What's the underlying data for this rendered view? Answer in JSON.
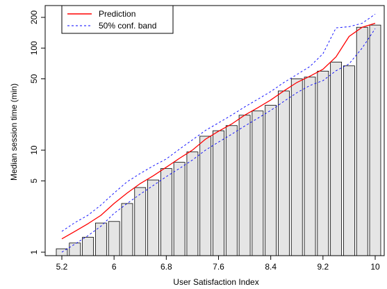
{
  "chart_data": {
    "type": "bar",
    "title": "",
    "xlabel": "User Satisfaction Index",
    "ylabel": "Median session time (min)",
    "y_scale": "log",
    "ylim": [
      1,
      200
    ],
    "xlim": [
      5.2,
      10
    ],
    "x_ticks": [
      "5.2",
      "6",
      "6.8",
      "7.6",
      "8.4",
      "9.2",
      "10"
    ],
    "x_tick_values": [
      5.2,
      6.0,
      6.8,
      7.6,
      8.4,
      9.2,
      10.0
    ],
    "y_ticks": [
      "1",
      "5",
      "10",
      "50",
      "100",
      "200"
    ],
    "y_tick_values": [
      1,
      5,
      10,
      50,
      100,
      200
    ],
    "grid": false,
    "legend_position": "top-left",
    "bar_fill": "#e5e5e5",
    "bar_stroke": "#000000",
    "bars": {
      "name": "",
      "x": [
        5.2,
        5.4,
        5.6,
        5.8,
        6.0,
        6.2,
        6.4,
        6.6,
        6.8,
        7.0,
        7.2,
        7.4,
        7.6,
        7.8,
        8.0,
        8.2,
        8.4,
        8.6,
        8.8,
        9.0,
        9.2,
        9.4,
        9.6,
        9.8,
        10.0
      ],
      "values": [
        1.08,
        1.23,
        1.4,
        1.93,
        2.0,
        3.0,
        4.3,
        5.1,
        6.6,
        7.6,
        9.6,
        13.7,
        15.5,
        17.4,
        22.0,
        24.2,
        27.5,
        38.0,
        50.0,
        52.0,
        59.5,
        73.0,
        67.0,
        160.0,
        168.0
      ]
    },
    "series": [
      {
        "name": "Prediction",
        "style": "solid",
        "color": "#ff0000",
        "x": [
          5.2,
          5.4,
          5.6,
          5.8,
          6.0,
          6.2,
          6.4,
          6.6,
          6.8,
          7.0,
          7.2,
          7.4,
          7.6,
          7.8,
          8.0,
          8.2,
          8.4,
          8.6,
          8.8,
          9.0,
          9.2,
          9.4,
          9.6,
          9.8,
          10.0
        ],
        "values": [
          1.35,
          1.6,
          1.9,
          2.3,
          3.0,
          3.8,
          4.7,
          5.6,
          6.8,
          8.3,
          10.0,
          12.8,
          15.3,
          18.0,
          22.0,
          26.0,
          31.0,
          38.0,
          46.0,
          53.0,
          62.0,
          82.0,
          130.0,
          160.0,
          175.0
        ]
      },
      {
        "name": "50% conf. band",
        "style": "dashed",
        "color": "#0000ff",
        "x": [
          5.2,
          5.4,
          5.6,
          5.8,
          6.0,
          6.2,
          6.4,
          6.6,
          6.8,
          7.0,
          7.2,
          7.4,
          7.6,
          7.8,
          8.0,
          8.2,
          8.4,
          8.6,
          8.8,
          9.0,
          9.2,
          9.4,
          9.6,
          9.8,
          10.0
        ],
        "values": [
          1.6,
          1.95,
          2.3,
          2.9,
          3.8,
          4.9,
          5.9,
          7.0,
          8.2,
          10.2,
          12.6,
          15.6,
          18.5,
          22.0,
          26.5,
          31.5,
          37.5,
          46.0,
          55.0,
          66.0,
          88.0,
          158.0,
          162.0,
          175.0,
          215.0
        ]
      },
      {
        "name": "50% conf. band",
        "style": "dashed",
        "color": "#0000ff",
        "x": [
          5.2,
          5.4,
          5.6,
          5.8,
          6.0,
          6.2,
          6.4,
          6.6,
          6.8,
          7.0,
          7.2,
          7.4,
          7.6,
          7.8,
          8.0,
          8.2,
          8.4,
          8.6,
          8.8,
          9.0,
          9.2,
          9.4,
          9.6,
          9.8,
          10.0
        ],
        "values": [
          1.0,
          1.2,
          1.45,
          1.8,
          2.4,
          3.0,
          3.7,
          4.5,
          5.5,
          6.6,
          8.0,
          10.0,
          12.0,
          14.3,
          17.2,
          20.5,
          24.5,
          30.0,
          36.5,
          43.0,
          48.0,
          60.0,
          70.0,
          100.0,
          155.0
        ]
      }
    ],
    "legend": [
      {
        "label": "Prediction",
        "style": "solid",
        "color": "#ff0000"
      },
      {
        "label": "50% conf. band",
        "style": "dashed",
        "color": "#0000ff"
      }
    ]
  }
}
